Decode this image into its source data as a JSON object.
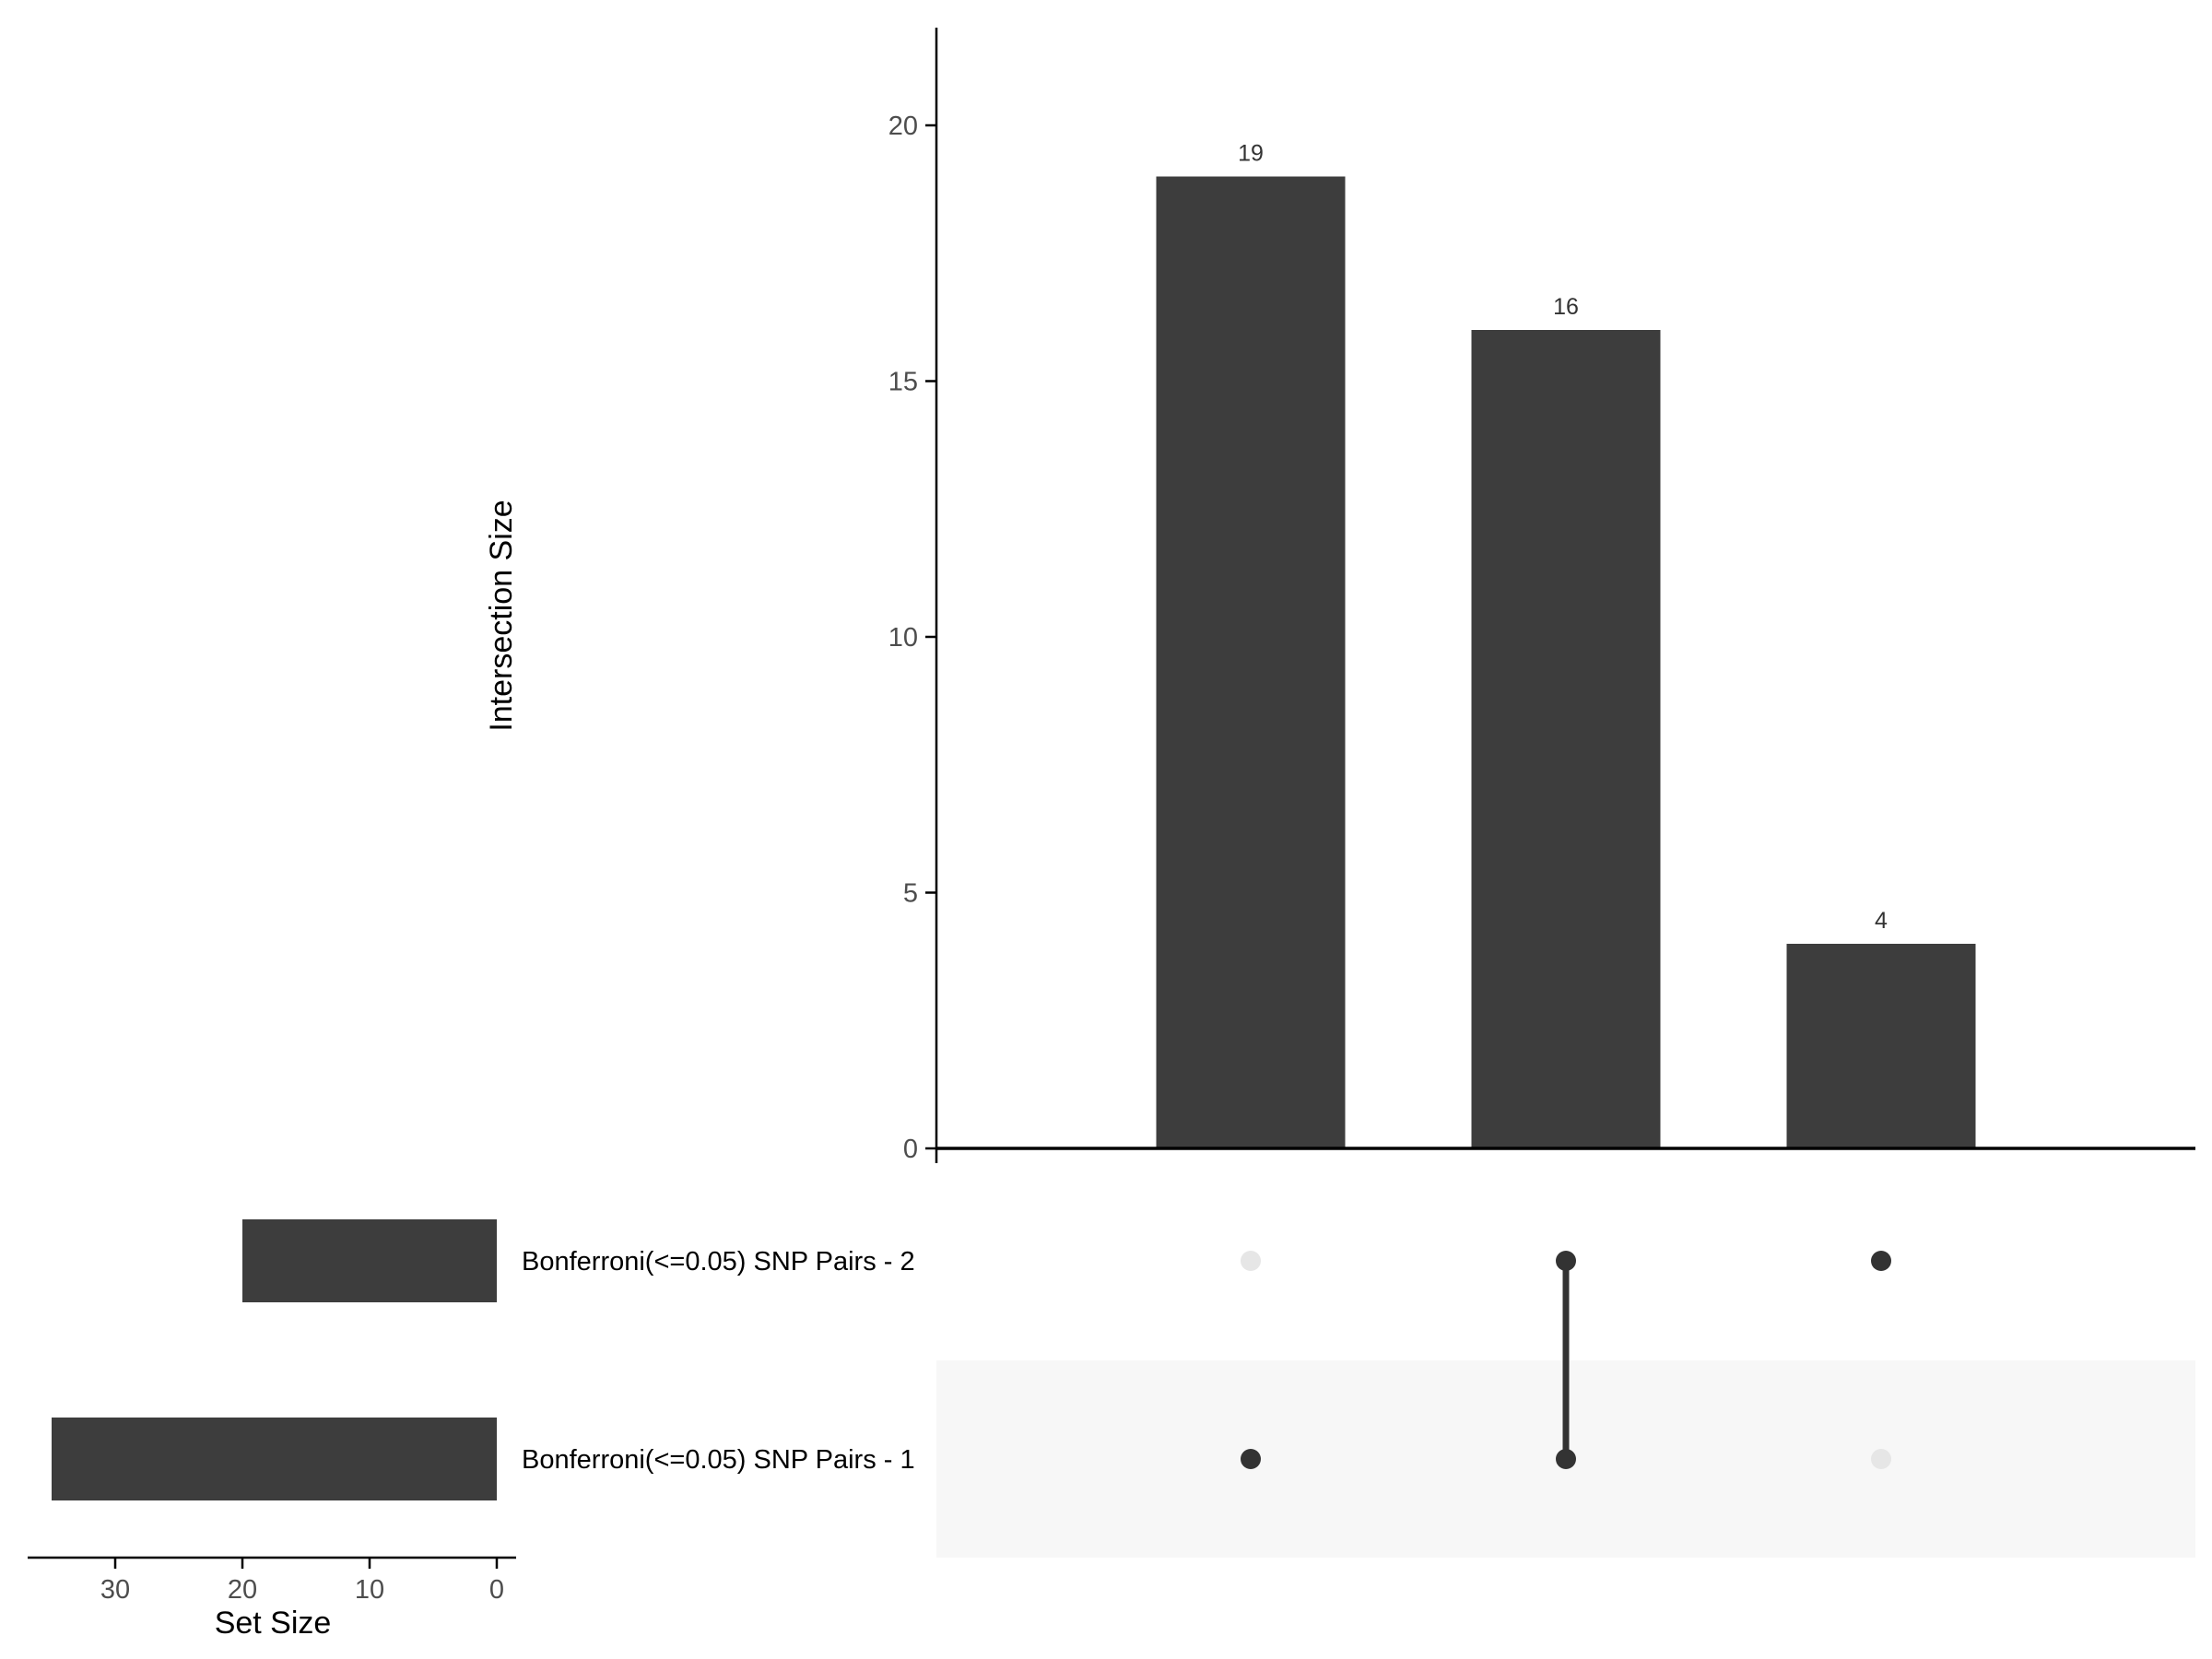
{
  "chart_data": {
    "type": "bar",
    "subtype": "upset",
    "sets": [
      "Bonferroni(<=0.05) SNP Pairs - 2",
      "Bonferroni(<=0.05) SNP Pairs - 1"
    ],
    "intersections": [
      {
        "members": [
          "Bonferroni(<=0.05) SNP Pairs - 1"
        ],
        "size": 19,
        "label": "19"
      },
      {
        "members": [
          "Bonferroni(<=0.05) SNP Pairs - 1",
          "Bonferroni(<=0.05) SNP Pairs - 2"
        ],
        "size": 16,
        "label": "16"
      },
      {
        "members": [
          "Bonferroni(<=0.05) SNP Pairs - 2"
        ],
        "size": 4,
        "label": "4"
      }
    ],
    "set_sizes": [
      20,
      35
    ],
    "ylabel": "Intersection Size",
    "ylim": [
      0,
      22
    ],
    "yticks": [
      0,
      5,
      10,
      15,
      20
    ],
    "set_size_label": "Set Size",
    "set_size_lim": [
      0,
      37
    ],
    "set_size_ticks": [
      30,
      20,
      10,
      0
    ],
    "grid": false,
    "colors": {
      "bar": "#3d3d3d",
      "dot_active": "#333333",
      "dot_inactive": "#e6e6e6",
      "stripe": "#f7f7f7",
      "axis": "#000000",
      "tick_label": "#4d4d4d"
    }
  }
}
